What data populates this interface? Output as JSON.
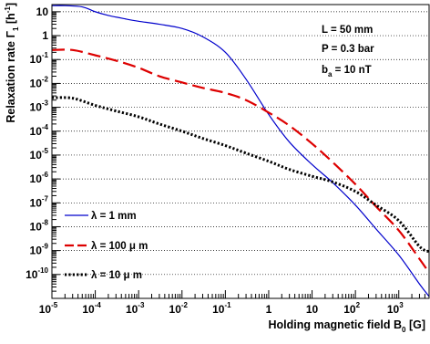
{
  "chart_data": {
    "type": "line",
    "xlabel": "Holding magnetic field B",
    "xlabel_sub": "0",
    "xlabel_unit": " [G]",
    "ylabel": "Relaxation rate Γ",
    "ylabel_sub": "1",
    "ylabel_unit": " [h",
    "ylabel_unit_sup": "-1",
    "ylabel_unit_end": "]",
    "x_scale": "log",
    "y_scale": "log",
    "xlim": [
      1e-05,
      5000
    ],
    "ylim": [
      1e-11,
      20
    ],
    "grid": "horizontal dotted",
    "x_ticks": [
      {
        "base": "10",
        "exp": "-5",
        "value": 1e-05
      },
      {
        "base": "10",
        "exp": "-4",
        "value": 0.0001
      },
      {
        "base": "10",
        "exp": "-3",
        "value": 0.001
      },
      {
        "base": "10",
        "exp": "-2",
        "value": 0.01
      },
      {
        "base": "10",
        "exp": "-1",
        "value": 0.1
      },
      {
        "base": "1",
        "exp": "",
        "value": 1
      },
      {
        "base": "10",
        "exp": "",
        "value": 10
      },
      {
        "base": "10",
        "exp": "2",
        "value": 100
      },
      {
        "base": "10",
        "exp": "3",
        "value": 1000
      }
    ],
    "y_ticks": [
      {
        "base": "10",
        "exp": "",
        "value": 10
      },
      {
        "base": "1",
        "exp": "",
        "value": 1
      },
      {
        "base": "10",
        "exp": "-1",
        "value": 0.1
      },
      {
        "base": "10",
        "exp": "-2",
        "value": 0.01
      },
      {
        "base": "10",
        "exp": "-3",
        "value": 0.001
      },
      {
        "base": "10",
        "exp": "-4",
        "value": 0.0001
      },
      {
        "base": "10",
        "exp": "-5",
        "value": 1e-05
      },
      {
        "base": "10",
        "exp": "-6",
        "value": 1e-06
      },
      {
        "base": "10",
        "exp": "-7",
        "value": 1e-07
      },
      {
        "base": "10",
        "exp": "-8",
        "value": 1e-08
      },
      {
        "base": "10",
        "exp": "-9",
        "value": 1e-09
      },
      {
        "base": "10",
        "exp": "-10",
        "value": 1e-10
      }
    ],
    "annotations": [
      {
        "text": "L = 50 mm",
        "sub": ""
      },
      {
        "text": "P = 0.3 bar",
        "sub": ""
      },
      {
        "text": "b",
        "sub": "a",
        "rest": " = 10 nT"
      }
    ],
    "legend_position": "bottom-left",
    "series": [
      {
        "name": "λ = 1 mm",
        "color": "#0000cc",
        "style": "solid",
        "points": [
          [
            1e-05,
            18
          ],
          [
            2e-05,
            18
          ],
          [
            5e-05,
            16
          ],
          [
            0.0001,
            10
          ],
          [
            0.0002,
            7
          ],
          [
            0.0005,
            5
          ],
          [
            0.001,
            4
          ],
          [
            0.003,
            3
          ],
          [
            0.01,
            2
          ],
          [
            0.03,
            0.9
          ],
          [
            0.1,
            0.2
          ],
          [
            0.3,
            0.015
          ],
          [
            1,
            0.0005
          ],
          [
            3,
            3.5e-05
          ],
          [
            10,
            4e-06
          ],
          [
            30,
            7e-07
          ],
          [
            100,
            8e-08
          ],
          [
            300,
            8e-09
          ],
          [
            1000,
            6.5e-10
          ],
          [
            3000,
            4e-11
          ],
          [
            5000,
            1.2e-11
          ]
        ]
      },
      {
        "name": "λ = 100 μ m",
        "color": "#dd0000",
        "style": "dashed",
        "points": [
          [
            1e-05,
            0.25
          ],
          [
            3e-05,
            0.25
          ],
          [
            0.0001,
            0.15
          ],
          [
            0.0003,
            0.09
          ],
          [
            0.001,
            0.045
          ],
          [
            0.003,
            0.02
          ],
          [
            0.01,
            0.011
          ],
          [
            0.03,
            0.0065
          ],
          [
            0.1,
            0.004
          ],
          [
            0.3,
            0.002
          ],
          [
            1,
            0.0006
          ],
          [
            3,
            0.00017
          ],
          [
            10,
            3e-05
          ],
          [
            30,
            5e-06
          ],
          [
            100,
            6e-07
          ],
          [
            300,
            7e-08
          ],
          [
            1000,
            7e-09
          ],
          [
            3000,
            4.5e-10
          ],
          [
            5000,
            1.2e-10
          ]
        ]
      },
      {
        "name": "λ = 10 μ m",
        "color": "#000000",
        "style": "dotted",
        "points": [
          [
            1e-05,
            0.0025
          ],
          [
            3e-05,
            0.0024
          ],
          [
            0.0001,
            0.0012
          ],
          [
            0.0003,
            0.0007
          ],
          [
            0.001,
            0.0004
          ],
          [
            0.003,
            0.0002
          ],
          [
            0.01,
            0.0001
          ],
          [
            0.03,
            5e-05
          ],
          [
            0.1,
            2.5e-05
          ],
          [
            0.3,
            1.2e-05
          ],
          [
            1,
            5.5e-06
          ],
          [
            3,
            2.5e-06
          ],
          [
            10,
            1.3e-06
          ],
          [
            30,
            7.5e-07
          ],
          [
            100,
            3e-07
          ],
          [
            300,
            8e-08
          ],
          [
            1000,
            1.8e-08
          ],
          [
            3000,
            1.5e-09
          ],
          [
            5000,
            9e-10
          ]
        ]
      }
    ]
  }
}
